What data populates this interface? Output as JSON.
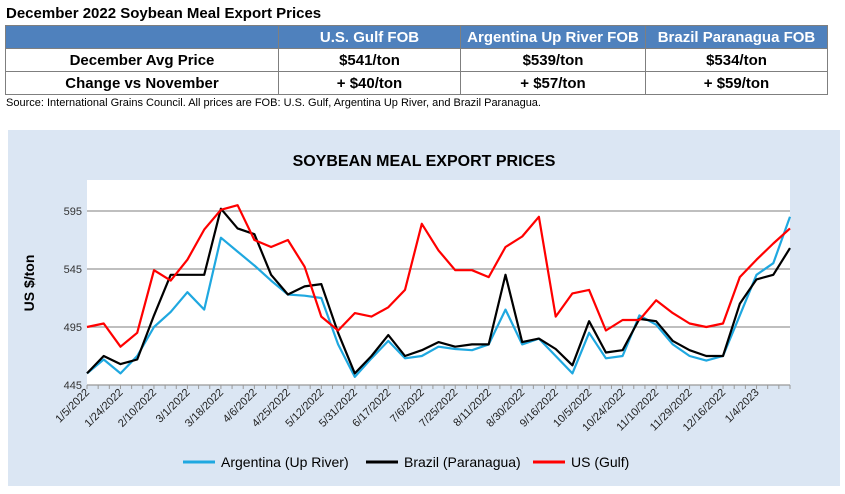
{
  "table": {
    "title": "December 2022 Soybean Meal Export Prices",
    "headers": [
      "",
      "U.S. Gulf FOB",
      "Argentina Up River FOB",
      "Brazil Paranagua FOB"
    ],
    "rows": [
      [
        "December Avg Price",
        "$541/ton",
        "$539/ton",
        "$534/ton"
      ],
      [
        "Change vs November",
        "+ $40/ton",
        "+ $57/ton",
        "+ $59/ton"
      ]
    ],
    "source": "Source: International Grains Council. All prices are FOB: U.S. Gulf, Argentina Up River, and Brazil Paranagua."
  },
  "chart_data": {
    "type": "line",
    "title": "SOYBEAN MEAL EXPORT PRICES",
    "xlabel": "",
    "ylabel": "US $/ton",
    "ylim": [
      445,
      605
    ],
    "yticks": [
      445,
      495,
      545,
      595
    ],
    "xticks": [
      "1/5/2022",
      "1/24/2022",
      "2/10/2022",
      "3/1/2022",
      "3/18/2022",
      "4/6/2022",
      "4/25/2022",
      "5/12/2022",
      "5/31/2022",
      "6/17/2022",
      "7/6/2022",
      "7/25/2022",
      "8/11/2022",
      "8/30/2022",
      "9/16/2022",
      "10/5/2022",
      "10/24/2022",
      "11/10/2022",
      "11/29/2022",
      "12/16/2022",
      "1/4/2023"
    ],
    "legend_position": "bottom",
    "grid": true,
    "series": [
      {
        "name": "Argentina (Up River)",
        "color": "#1fa8e0",
        "values": [
          455,
          467,
          455,
          470,
          495,
          508,
          525,
          510,
          572,
          560,
          548,
          535,
          523,
          522,
          520,
          480,
          452,
          468,
          483,
          468,
          470,
          478,
          476,
          475,
          480,
          510,
          480,
          485,
          470,
          455,
          490,
          468,
          470,
          505,
          497,
          480,
          470,
          466,
          470,
          505,
          540,
          550,
          590
        ]
      },
      {
        "name": "Brazil (Paranagua)",
        "color": "#000000",
        "values": [
          455,
          470,
          463,
          467,
          505,
          540,
          540,
          540,
          597,
          580,
          575,
          540,
          523,
          530,
          532,
          490,
          455,
          470,
          488,
          470,
          475,
          482,
          478,
          480,
          480,
          540,
          482,
          485,
          476,
          462,
          500,
          473,
          475,
          502,
          500,
          483,
          475,
          470,
          470,
          515,
          536,
          540,
          563
        ]
      },
      {
        "name": "US (Gulf)",
        "color": "#ff0000",
        "values": [
          495,
          498,
          478,
          490,
          544,
          535,
          553,
          579,
          596,
          600,
          570,
          564,
          570,
          547,
          504,
          492,
          507,
          504,
          512,
          527,
          584,
          561,
          544,
          544,
          538,
          564,
          573,
          590,
          504,
          524,
          527,
          492,
          501,
          501,
          518,
          507,
          498,
          495,
          498,
          538,
          553,
          567,
          580
        ]
      }
    ]
  }
}
